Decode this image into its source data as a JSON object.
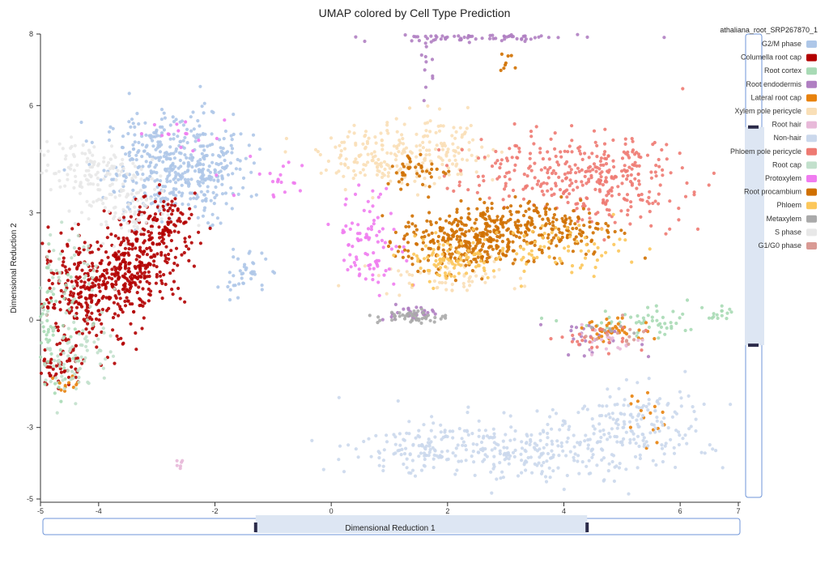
{
  "chart_data": {
    "type": "scatter",
    "title": "UMAP colored by Cell Type Prediction",
    "xlabel": "Dimensional Reduction 1",
    "ylabel": "Dimensional Reduction 2",
    "xlim": [
      -5,
      7
    ],
    "ylim": [
      -5,
      8
    ],
    "x_ticks": [
      "-5",
      "-4",
      "-2",
      "0",
      "2",
      "4",
      "6",
      "7"
    ],
    "x_tick_values": [
      -5,
      -4,
      -2,
      0,
      2,
      4,
      6,
      7
    ],
    "y_ticks": [
      "8",
      "6",
      "3",
      "0",
      "-3",
      "-5"
    ],
    "y_tick_values": [
      8,
      6,
      3,
      0,
      -3,
      -5
    ],
    "grid": false,
    "legend_placement": "right",
    "legend_title": "athaliana_root_SRP267870_1",
    "x_range_slider": [
      -1.3,
      4.4
    ],
    "y_range_slider": [
      -0.7,
      5.4
    ],
    "series": [
      {
        "name": "G2/M phase",
        "color": "#aec7e8",
        "clusters": [
          {
            "cx": -2.8,
            "cy": 4.3,
            "sx": 0.55,
            "sy": 0.75,
            "n": 380
          },
          {
            "cx": -2.1,
            "cy": 4.2,
            "sx": 0.3,
            "sy": 0.6,
            "n": 90
          },
          {
            "cx": -1.5,
            "cy": 1.3,
            "sx": 0.2,
            "sy": 0.3,
            "n": 40
          }
        ]
      },
      {
        "name": "Columella root cap",
        "color": "#b30000",
        "clusters": [
          {
            "cx": -4.2,
            "cy": 0.6,
            "sx": 0.45,
            "sy": 0.7,
            "n": 280
          },
          {
            "cx": -3.4,
            "cy": 1.5,
            "sx": 0.45,
            "sy": 0.55,
            "n": 240
          },
          {
            "cx": -2.9,
            "cy": 2.6,
            "sx": 0.3,
            "sy": 0.45,
            "n": 130
          },
          {
            "cx": -4.7,
            "cy": -1.3,
            "sx": 0.2,
            "sy": 0.25,
            "n": 50
          }
        ]
      },
      {
        "name": "Root cortex",
        "color": "#a8dab5",
        "clusters": [
          {
            "cx": -4.8,
            "cy": -0.4,
            "sx": 0.2,
            "sy": 0.9,
            "n": 60
          },
          {
            "cx": 5.4,
            "cy": -0.1,
            "sx": 0.6,
            "sy": 0.2,
            "n": 50
          },
          {
            "cx": 6.7,
            "cy": 0.1,
            "sx": 0.15,
            "sy": 0.15,
            "n": 15
          }
        ]
      },
      {
        "name": "Root endodermis",
        "color": "#b07fc2",
        "clusters": [
          {
            "cx": 2.5,
            "cy": 7.9,
            "sx": 0.9,
            "sy": 0.06,
            "n": 70
          },
          {
            "cx": 1.7,
            "cy": 6.8,
            "sx": 0.08,
            "sy": 0.6,
            "n": 12
          },
          {
            "cx": 1.3,
            "cy": 0.2,
            "sx": 0.25,
            "sy": 0.1,
            "n": 30
          },
          {
            "cx": 4.5,
            "cy": -0.5,
            "sx": 0.4,
            "sy": 0.25,
            "n": 25
          }
        ]
      },
      {
        "name": "Lateral root cap",
        "color": "#e8820c",
        "clusters": [
          {
            "cx": 4.9,
            "cy": -0.3,
            "sx": 0.35,
            "sy": 0.15,
            "n": 45
          },
          {
            "cx": 5.4,
            "cy": -2.7,
            "sx": 0.15,
            "sy": 0.4,
            "n": 15
          },
          {
            "cx": -4.5,
            "cy": -1.7,
            "sx": 0.15,
            "sy": 0.15,
            "n": 12
          }
        ]
      },
      {
        "name": "Xylem pole pericycle",
        "color": "#f9dfb7",
        "clusters": [
          {
            "cx": 0.9,
            "cy": 4.6,
            "sx": 0.55,
            "sy": 0.4,
            "n": 150
          },
          {
            "cx": 1.9,
            "cy": 4.7,
            "sx": 0.5,
            "sy": 0.5,
            "n": 100
          },
          {
            "cx": 2.0,
            "cy": 1.2,
            "sx": 0.6,
            "sy": 0.25,
            "n": 60
          }
        ]
      },
      {
        "name": "Root hair",
        "color": "#e8b9d9",
        "clusters": [
          {
            "cx": -2.6,
            "cy": -4.0,
            "sx": 0.06,
            "sy": 0.05,
            "n": 6
          },
          {
            "cx": 4.7,
            "cy": -0.6,
            "sx": 0.35,
            "sy": 0.2,
            "n": 20
          }
        ]
      },
      {
        "name": "Non-hair",
        "color": "#cbd8ec",
        "clusters": [
          {
            "cx": 3.2,
            "cy": -3.6,
            "sx": 1.3,
            "sy": 0.45,
            "n": 330
          },
          {
            "cx": 5.2,
            "cy": -2.8,
            "sx": 0.6,
            "sy": 0.5,
            "n": 130
          },
          {
            "cx": 1.5,
            "cy": -3.6,
            "sx": 0.4,
            "sy": 0.3,
            "n": 50
          }
        ]
      },
      {
        "name": "Phloem pole pericycle",
        "color": "#ee7a72",
        "clusters": [
          {
            "cx": 4.8,
            "cy": 3.9,
            "sx": 0.65,
            "sy": 0.6,
            "n": 240
          },
          {
            "cx": 3.3,
            "cy": 4.2,
            "sx": 0.6,
            "sy": 0.5,
            "n": 120
          },
          {
            "cx": 4.7,
            "cy": -0.5,
            "sx": 0.4,
            "sy": 0.25,
            "n": 25
          }
        ]
      },
      {
        "name": "Root cap",
        "color": "#c2e0cc",
        "clusters": [
          {
            "cx": -4.4,
            "cy": -0.8,
            "sx": 0.35,
            "sy": 0.7,
            "n": 90
          },
          {
            "cx": -4.6,
            "cy": 1.5,
            "sx": 0.3,
            "sy": 0.5,
            "n": 40
          }
        ]
      },
      {
        "name": "Protoxylem",
        "color": "#f07cf0",
        "clusters": [
          {
            "cx": 0.7,
            "cy": 2.2,
            "sx": 0.3,
            "sy": 0.7,
            "n": 90
          },
          {
            "cx": -0.8,
            "cy": 4.0,
            "sx": 0.4,
            "sy": 0.3,
            "n": 20
          },
          {
            "cx": -2.6,
            "cy": 5.2,
            "sx": 0.4,
            "sy": 0.3,
            "n": 15
          }
        ]
      },
      {
        "name": "Root procambium",
        "color": "#d07000",
        "clusters": [
          {
            "cx": 2.3,
            "cy": 2.2,
            "sx": 0.55,
            "sy": 0.45,
            "n": 320
          },
          {
            "cx": 3.7,
            "cy": 2.6,
            "sx": 0.6,
            "sy": 0.4,
            "n": 200
          },
          {
            "cx": 1.5,
            "cy": 4.2,
            "sx": 0.3,
            "sy": 0.25,
            "n": 40
          },
          {
            "cx": 3.0,
            "cy": 7.3,
            "sx": 0.06,
            "sy": 0.3,
            "n": 8
          }
        ]
      },
      {
        "name": "Phloem",
        "color": "#fcc75a",
        "clusters": [
          {
            "cx": 2.0,
            "cy": 1.7,
            "sx": 0.4,
            "sy": 0.3,
            "n": 90
          },
          {
            "cx": 3.9,
            "cy": 2.0,
            "sx": 0.6,
            "sy": 0.35,
            "n": 70
          }
        ]
      },
      {
        "name": "Metaxylem",
        "color": "#aaaaaa",
        "clusters": [
          {
            "cx": 1.4,
            "cy": 0.1,
            "sx": 0.3,
            "sy": 0.1,
            "n": 50
          },
          {
            "cx": 4.8,
            "cy": -0.3,
            "sx": 0.2,
            "sy": 0.1,
            "n": 6
          }
        ]
      },
      {
        "name": "S phase",
        "color": "#e8e8e8",
        "clusters": [
          {
            "cx": -4.2,
            "cy": 4.2,
            "sx": 0.45,
            "sy": 0.4,
            "n": 120
          },
          {
            "cx": -3.6,
            "cy": 3.1,
            "sx": 0.4,
            "sy": 0.45,
            "n": 80
          }
        ]
      },
      {
        "name": "G1/G0 phase",
        "color": "#d99a94",
        "clusters": [
          {
            "cx": 4.9,
            "cy": -0.4,
            "sx": 0.3,
            "sy": 0.15,
            "n": 12
          }
        ]
      }
    ]
  }
}
